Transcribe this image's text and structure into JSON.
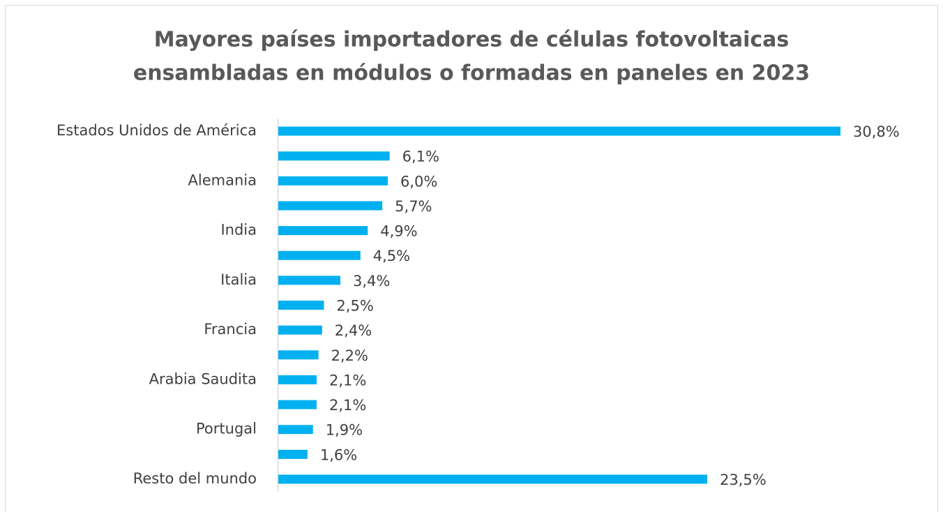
{
  "chart_data": {
    "type": "barh",
    "title": [
      "Mayores países importadores de células fotovoltaicas",
      "ensambladas en módulos o formadas en paneles en 2023"
    ],
    "categories": [
      "Estados Unidos de América",
      null,
      "Alemania",
      null,
      "India",
      null,
      "Italia",
      null,
      "Francia",
      null,
      "Arabia Saudita",
      null,
      "Portugal",
      null,
      "Resto del mundo"
    ],
    "values": [
      30.8,
      6.1,
      6.0,
      5.7,
      4.9,
      4.5,
      3.4,
      2.5,
      2.4,
      2.2,
      2.1,
      2.1,
      1.9,
      1.6,
      23.5
    ],
    "value_labels": [
      "30,8%",
      "6,1%",
      "6,0%",
      "5,7%",
      "4,9%",
      "4,5%",
      "3,4%",
      "2,5%",
      "2,4%",
      "2,2%",
      "2,1%",
      "2,1%",
      "1,9%",
      "1,6%",
      "23,5%"
    ],
    "color": "#00b0f0"
  }
}
